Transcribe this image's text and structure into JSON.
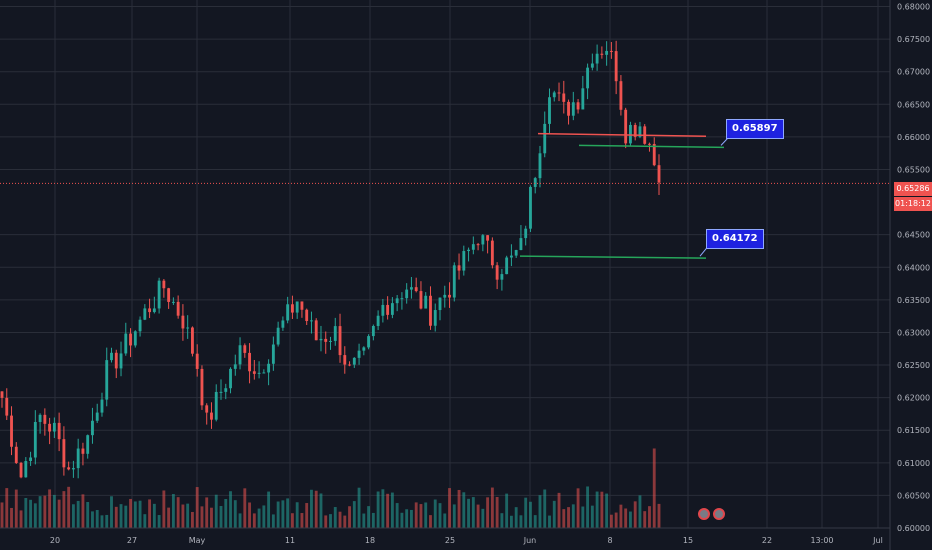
{
  "chart_data": {
    "type": "candlestick",
    "y_axis": {
      "ticks": [
        "0.68000",
        "0.67500",
        "0.67000",
        "0.66500",
        "0.66000",
        "0.65500",
        "0.64500",
        "0.64000",
        "0.63500",
        "0.63000",
        "0.62500",
        "0.62000",
        "0.61500",
        "0.61000",
        "0.60500",
        "0.60000"
      ],
      "ylim": [
        0.6,
        0.681
      ]
    },
    "x_axis": {
      "ticks": [
        "20",
        "27",
        "May",
        "11",
        "18",
        "25",
        "Jun",
        "8",
        "15",
        "22",
        "13:00",
        "Jul"
      ]
    },
    "current_price": "0.65286",
    "countdown": "01:18:12",
    "annotations": [
      {
        "label": "0.65897",
        "value": 0.65897
      },
      {
        "label": "0.64172",
        "value": 0.64172
      }
    ],
    "key_closes": [
      {
        "i": 0,
        "c": 0.62
      },
      {
        "i": 4,
        "c": 0.608
      },
      {
        "i": 8,
        "c": 0.617
      },
      {
        "i": 11,
        "c": 0.615
      },
      {
        "i": 14,
        "c": 0.609
      },
      {
        "i": 18,
        "c": 0.614
      },
      {
        "i": 22,
        "c": 0.624
      },
      {
        "i": 26,
        "c": 0.628
      },
      {
        "i": 30,
        "c": 0.633
      },
      {
        "i": 34,
        "c": 0.637
      },
      {
        "i": 38,
        "c": 0.632
      },
      {
        "i": 41,
        "c": 0.625
      },
      {
        "i": 43,
        "c": 0.616
      },
      {
        "i": 46,
        "c": 0.621
      },
      {
        "i": 50,
        "c": 0.627
      },
      {
        "i": 54,
        "c": 0.624
      },
      {
        "i": 58,
        "c": 0.63
      },
      {
        "i": 62,
        "c": 0.635
      },
      {
        "i": 66,
        "c": 0.629
      },
      {
        "i": 70,
        "c": 0.63
      },
      {
        "i": 73,
        "c": 0.624
      },
      {
        "i": 76,
        "c": 0.626
      },
      {
        "i": 80,
        "c": 0.634
      },
      {
        "i": 85,
        "c": 0.637
      },
      {
        "i": 90,
        "c": 0.633
      },
      {
        "i": 94,
        "c": 0.637
      },
      {
        "i": 97,
        "c": 0.641
      },
      {
        "i": 100,
        "c": 0.645
      },
      {
        "i": 104,
        "c": 0.64
      },
      {
        "i": 107,
        "c": 0.641
      },
      {
        "i": 109,
        "c": 0.643
      },
      {
        "i": 112,
        "c": 0.655
      },
      {
        "i": 115,
        "c": 0.668
      },
      {
        "i": 118,
        "c": 0.664
      },
      {
        "i": 121,
        "c": 0.666
      },
      {
        "i": 124,
        "c": 0.673
      },
      {
        "i": 127,
        "c": 0.674
      },
      {
        "i": 129,
        "c": 0.67
      },
      {
        "i": 131,
        "c": 0.661
      },
      {
        "i": 134,
        "c": 0.662
      },
      {
        "i": 136,
        "c": 0.659
      },
      {
        "i": 138,
        "c": 0.653
      }
    ],
    "volume_spike": 0.0122
  },
  "colors": {
    "up": "#26a69a",
    "down": "#ef5350",
    "bg": "#131722",
    "grid": "#2a2e39",
    "axis_text": "#b2b5be",
    "red_line": "#ef5350",
    "green_line": "#26a65b"
  }
}
